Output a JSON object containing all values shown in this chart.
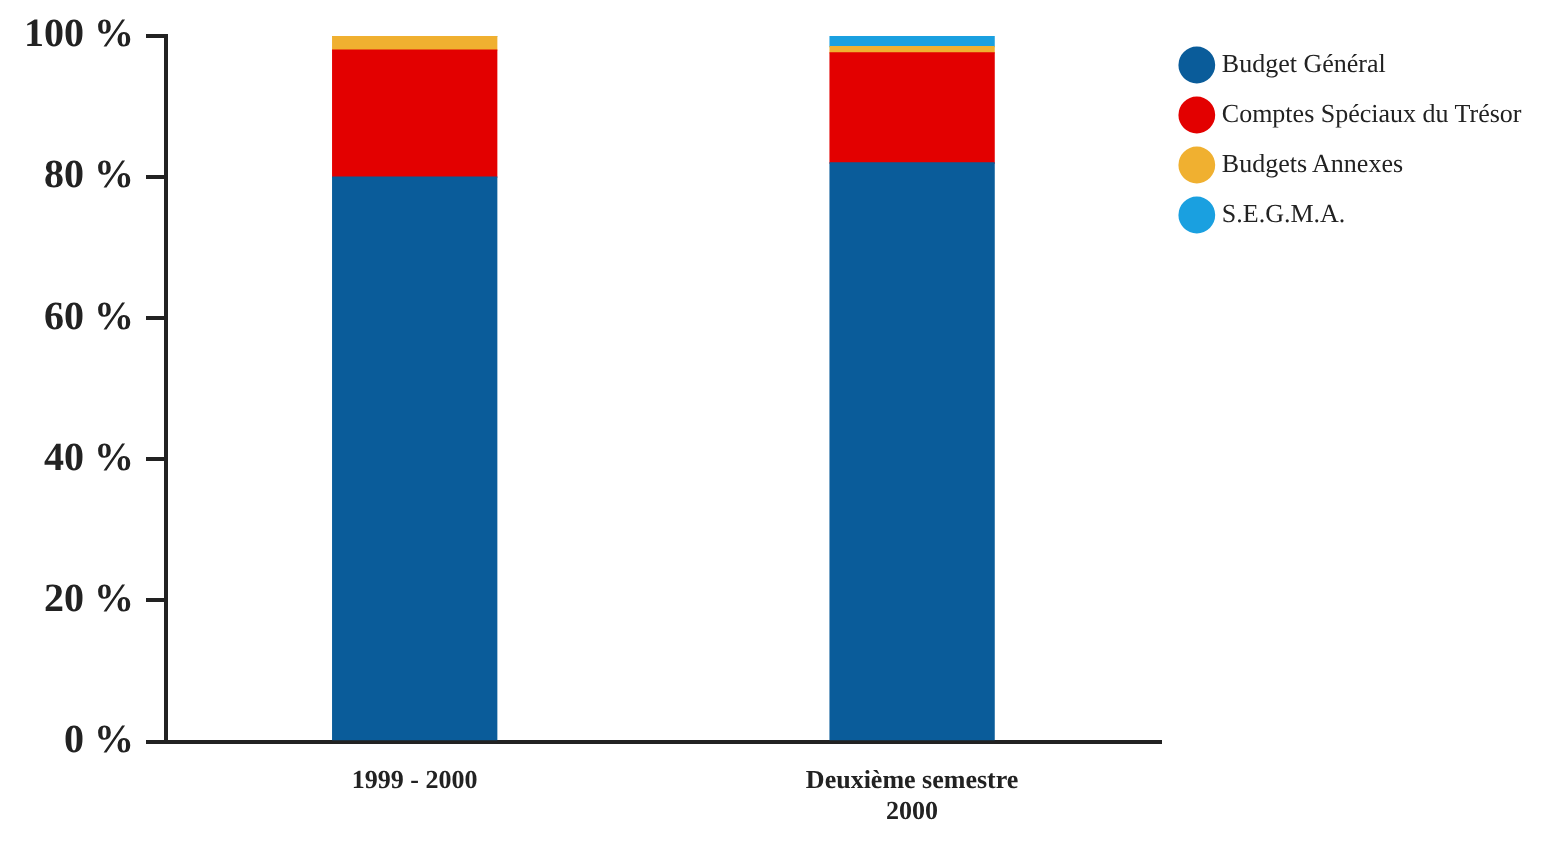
{
  "chart_data": {
    "type": "bar",
    "stacked": true,
    "categories": [
      "1999 - 2000",
      "Deuxième semestre 2000"
    ],
    "series": [
      {
        "name": "Budget Général",
        "color": "#0a5c9a",
        "values": [
          80,
          82
        ]
      },
      {
        "name": "Comptes Spéciaux du Trésor",
        "color": "#e30000",
        "values": [
          18,
          15.6
        ]
      },
      {
        "name": "Budgets Annexes",
        "color": "#f0b030",
        "values": [
          2,
          0.9
        ]
      },
      {
        "name": "S.E.G.M.A.",
        "color": "#1aa0e0",
        "values": [
          0,
          1.5
        ]
      }
    ],
    "ylim": [
      0,
      100
    ],
    "yticks": [
      {
        "value": 0,
        "label": "0 %"
      },
      {
        "value": 20,
        "label": "20 %"
      },
      {
        "value": 40,
        "label": "40 %"
      },
      {
        "value": 60,
        "label": "60 %"
      },
      {
        "value": 80,
        "label": "80 %"
      },
      {
        "value": 100,
        "label": "100 %"
      }
    ],
    "grid": false,
    "legend": "top right"
  }
}
